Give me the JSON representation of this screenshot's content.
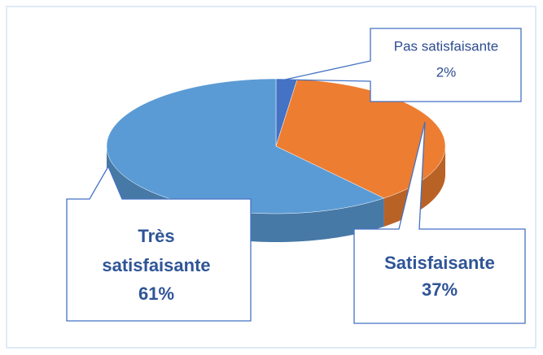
{
  "chart_data": {
    "type": "pie",
    "categories": [
      "Pas satisfaisante",
      "Satisfaisante",
      "Très satisfaisante"
    ],
    "values": [
      2,
      37,
      61
    ],
    "value_labels": [
      "2%",
      "37%",
      "61%"
    ],
    "colors": [
      "#4472c4",
      "#ed7d31",
      "#5b9bd5"
    ]
  }
}
